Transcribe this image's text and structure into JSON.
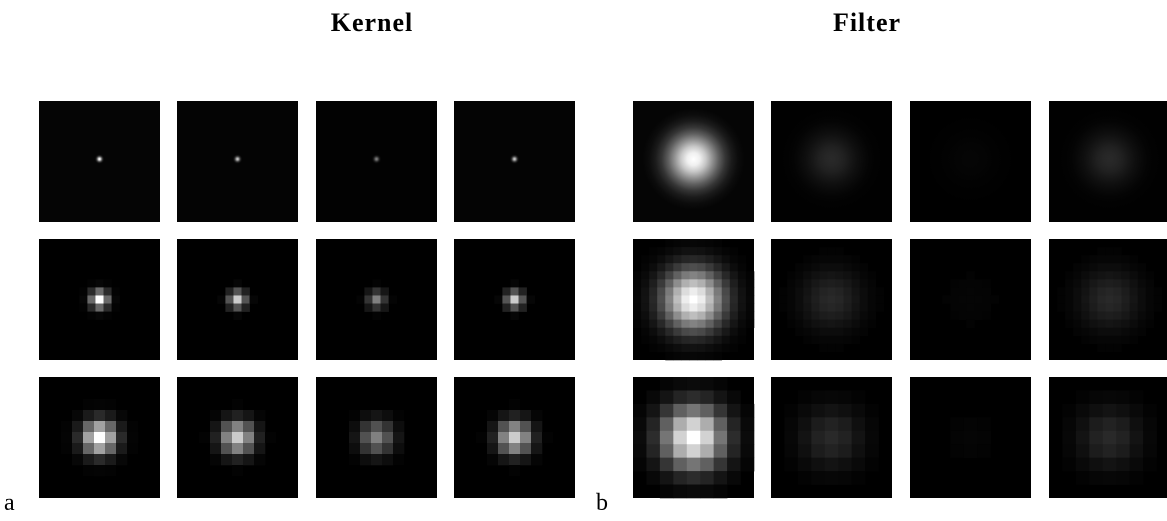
{
  "panels": [
    {
      "title": "Kernel",
      "label": "a"
    },
    {
      "title": "Filter",
      "label": "b"
    }
  ]
}
